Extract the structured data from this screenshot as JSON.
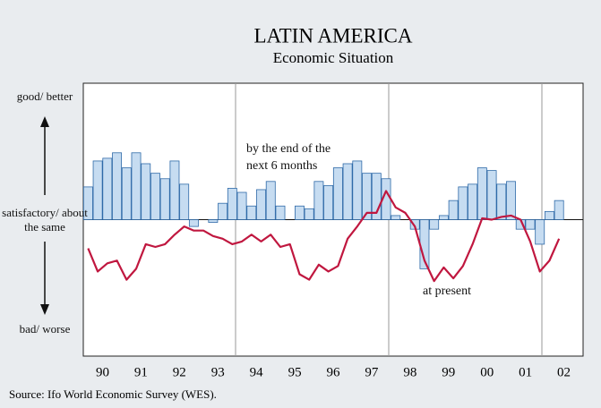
{
  "chart_data": {
    "type": "combo",
    "title": "LATIN AMERICA",
    "subtitle": "Economic Situation",
    "source": "Source: Ifo World Economic Survey (WES).",
    "x": [
      1990.125,
      1990.375,
      1990.625,
      1990.875,
      1991.125,
      1991.375,
      1991.625,
      1991.875,
      1992.125,
      1992.375,
      1992.625,
      1992.875,
      1993.125,
      1993.375,
      1993.625,
      1993.875,
      1994.125,
      1994.375,
      1994.625,
      1994.875,
      1995.125,
      1995.375,
      1995.625,
      1995.875,
      1996.125,
      1996.375,
      1996.625,
      1996.875,
      1997.125,
      1997.375,
      1997.625,
      1997.875,
      1998.125,
      1998.375,
      1998.625,
      1998.875,
      1999.125,
      1999.375,
      1999.625,
      1999.875,
      2000.125,
      2000.375,
      2000.625,
      2000.875,
      2001.125,
      2001.375,
      2001.625,
      2001.875,
      2002.125,
      2002.375
    ],
    "xlim": [
      1990,
      2003
    ],
    "xticks": [
      {
        "value": 1990.5,
        "label": "90"
      },
      {
        "value": 1991.5,
        "label": "91"
      },
      {
        "value": 1992.5,
        "label": "92"
      },
      {
        "value": 1993.5,
        "label": "93"
      },
      {
        "value": 1994.5,
        "label": "94"
      },
      {
        "value": 1995.5,
        "label": "95"
      },
      {
        "value": 1996.5,
        "label": "96"
      },
      {
        "value": 1997.5,
        "label": "97"
      },
      {
        "value": 1998.5,
        "label": "98"
      },
      {
        "value": 1999.5,
        "label": "99"
      },
      {
        "value": 2000.5,
        "label": "00"
      },
      {
        "value": 2001.5,
        "label": "01"
      },
      {
        "value": 2002.5,
        "label": "02"
      }
    ],
    "ylim": [
      -10,
      10
    ],
    "yticks": [
      {
        "value": 9,
        "label": "good/ better"
      },
      {
        "value": 0,
        "label": "satisfactory/ about the same"
      },
      {
        "value": -8,
        "label": "bad/ worse"
      }
    ],
    "series": [
      {
        "name": "by the end of the next 6 months",
        "type": "bar",
        "color": "#c6dcf1",
        "edge": "#2f6aa8",
        "values": [
          2.4,
          4.3,
          4.5,
          4.9,
          3.8,
          4.9,
          4.1,
          3.4,
          3.0,
          4.3,
          2.6,
          -0.5,
          0,
          -0.2,
          1.2,
          2.3,
          2.0,
          1.0,
          2.2,
          2.8,
          1.0,
          0,
          1.0,
          0.8,
          2.8,
          2.5,
          3.8,
          4.1,
          4.3,
          3.4,
          3.4,
          3.0,
          0.3,
          0,
          -0.7,
          -3.6,
          -0.7,
          0.3,
          1.4,
          2.4,
          2.6,
          3.8,
          3.6,
          2.6,
          2.8,
          -0.7,
          -0.7,
          -1.8,
          0.6,
          1.4
        ]
      },
      {
        "name": "at present",
        "type": "line",
        "color": "#c0173f",
        "values": [
          -2.1,
          -3.8,
          -3.2,
          -3.0,
          -4.4,
          -3.6,
          -1.8,
          -2.0,
          -1.8,
          -1.1,
          -0.5,
          -0.8,
          -0.8,
          -1.2,
          -1.4,
          -1.8,
          -1.6,
          -1.1,
          -1.6,
          -1.1,
          -2.0,
          -1.8,
          -4.0,
          -4.4,
          -3.3,
          -3.8,
          -3.4,
          -1.4,
          -0.5,
          0.5,
          0.5,
          2.1,
          0.9,
          0.5,
          -0.5,
          -3.0,
          -4.5,
          -3.5,
          -4.3,
          -3.4,
          -1.8,
          0.1,
          0,
          0.2,
          0.3,
          0,
          -1.6,
          -3.8,
          -3.0,
          -1.4
        ]
      }
    ]
  }
}
